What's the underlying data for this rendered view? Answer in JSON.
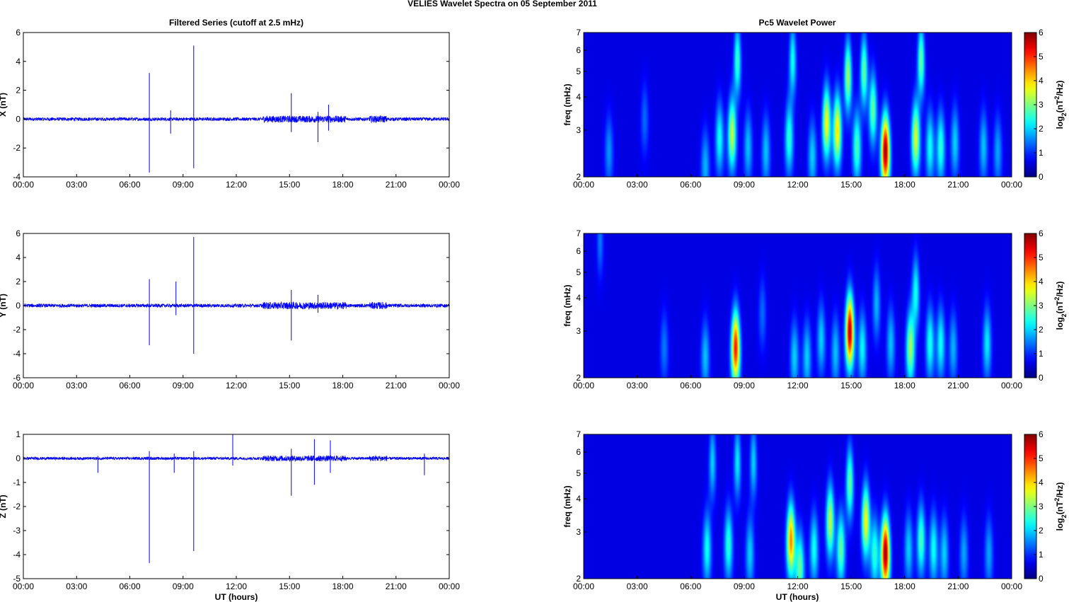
{
  "figure": {
    "suptitle": "VELIES Wavelet Spectra on 05 September 2011",
    "left_title": "Filtered Series (cutoff at 2.5 mHz)",
    "right_title": "Pc5 Wavelet Power",
    "xlabel": "UT (hours)",
    "freq_label": "freq (mHz)",
    "colorbar_label_parts": [
      "log",
      "2",
      "(nT",
      "2",
      "/Hz)"
    ],
    "colors": {
      "trace": "#0000ff",
      "jet_low": "#00008f",
      "jet_high": "#800000"
    }
  },
  "chart_data": [
    {
      "id": "x-series",
      "type": "line",
      "ylabel": "X (nT)",
      "xlim": [
        0,
        24
      ],
      "ylim": [
        -4,
        6
      ],
      "x_ticks": [
        "00:00",
        "03:00",
        "06:00",
        "09:00",
        "12:00",
        "15:00",
        "18:00",
        "21:00",
        "00:00"
      ],
      "y_ticks": [
        -4,
        -2,
        0,
        2,
        4,
        6
      ],
      "noise_amplitude": 0.12,
      "spikes": [
        {
          "x": 7.1,
          "y_max": 3.2,
          "y_min": -3.7
        },
        {
          "x": 8.3,
          "y_max": 0.6,
          "y_min": -1.0
        },
        {
          "x": 9.6,
          "y_max": 5.1,
          "y_min": -3.4
        },
        {
          "x": 15.1,
          "y_max": 1.8,
          "y_min": -0.9
        },
        {
          "x": 16.6,
          "y_max": 0.5,
          "y_min": -1.6
        },
        {
          "x": 17.2,
          "y_max": 1.0,
          "y_min": -0.8
        }
      ]
    },
    {
      "id": "y-series",
      "type": "line",
      "ylabel": "Y (nT)",
      "xlim": [
        0,
        24
      ],
      "ylim": [
        -6,
        6
      ],
      "x_ticks": [
        "00:00",
        "03:00",
        "06:00",
        "09:00",
        "12:00",
        "15:00",
        "18:00",
        "21:00",
        "00:00"
      ],
      "y_ticks": [
        -6,
        -4,
        -2,
        0,
        2,
        4,
        6
      ],
      "noise_amplitude": 0.15,
      "spikes": [
        {
          "x": 7.1,
          "y_max": 2.2,
          "y_min": -3.3
        },
        {
          "x": 8.6,
          "y_max": 2.0,
          "y_min": -0.8
        },
        {
          "x": 9.6,
          "y_max": 5.7,
          "y_min": -4.0
        },
        {
          "x": 15.1,
          "y_max": 1.3,
          "y_min": -2.9
        },
        {
          "x": 16.6,
          "y_max": 0.9,
          "y_min": -0.6
        }
      ]
    },
    {
      "id": "z-series",
      "type": "line",
      "ylabel": "Z (nT)",
      "xlim": [
        0,
        24
      ],
      "ylim": [
        -5,
        1
      ],
      "x_ticks": [
        "00:00",
        "03:00",
        "06:00",
        "09:00",
        "12:00",
        "15:00",
        "18:00",
        "21:00",
        "00:00"
      ],
      "y_ticks": [
        -5,
        -4,
        -3,
        -2,
        -1,
        0,
        1
      ],
      "noise_amplitude": 0.06,
      "spikes": [
        {
          "x": 4.2,
          "y_max": 0.1,
          "y_min": -0.6
        },
        {
          "x": 7.1,
          "y_max": 0.3,
          "y_min": -4.35
        },
        {
          "x": 8.5,
          "y_max": 0.2,
          "y_min": -0.6
        },
        {
          "x": 9.6,
          "y_max": 0.3,
          "y_min": -3.85
        },
        {
          "x": 11.8,
          "y_max": 1.0,
          "y_min": -0.3
        },
        {
          "x": 15.1,
          "y_max": 0.4,
          "y_min": -1.55
        },
        {
          "x": 16.4,
          "y_max": 0.8,
          "y_min": -1.1
        },
        {
          "x": 17.3,
          "y_max": 0.75,
          "y_min": -0.6
        },
        {
          "x": 22.6,
          "y_max": 0.2,
          "y_min": -0.7
        }
      ]
    },
    {
      "id": "x-wavelet",
      "type": "heatmap",
      "ylabel": "freq (mHz)",
      "y_scale": "log",
      "xlim": [
        0,
        24
      ],
      "ylim": [
        2,
        7
      ],
      "x_ticks": [
        "00:00",
        "03:00",
        "06:00",
        "09:00",
        "12:00",
        "15:00",
        "18:00",
        "21:00",
        "00:00"
      ],
      "y_ticks": [
        2,
        3,
        4,
        5,
        6,
        7
      ],
      "colorbar": {
        "range": [
          0,
          6
        ],
        "ticks": [
          0,
          1,
          2,
          3,
          4,
          5,
          6
        ],
        "colormap": "jet"
      },
      "blobs": [
        {
          "t": 1.4,
          "f": 2.5,
          "peak": 1.2
        },
        {
          "t": 3.4,
          "f": 3.3,
          "peak": 0.9
        },
        {
          "t": 6.8,
          "f": 2.2,
          "peak": 1.4
        },
        {
          "t": 7.6,
          "f": 2.8,
          "peak": 2.0
        },
        {
          "t": 8.3,
          "f": 2.9,
          "peak": 3.2
        },
        {
          "t": 8.6,
          "f": 5.5,
          "peak": 2.3
        },
        {
          "t": 9.2,
          "f": 2.6,
          "peak": 1.5
        },
        {
          "t": 10.2,
          "f": 2.5,
          "peak": 1.5
        },
        {
          "t": 11.5,
          "f": 2.8,
          "peak": 2.2
        },
        {
          "t": 11.7,
          "f": 5.5,
          "peak": 2.0
        },
        {
          "t": 12.8,
          "f": 2.4,
          "peak": 1.6
        },
        {
          "t": 13.6,
          "f": 3.2,
          "peak": 3.6
        },
        {
          "t": 14.2,
          "f": 3.0,
          "peak": 3.8
        },
        {
          "t": 14.8,
          "f": 4.8,
          "peak": 3.0
        },
        {
          "t": 15.3,
          "f": 2.6,
          "peak": 2.4
        },
        {
          "t": 15.7,
          "f": 5.0,
          "peak": 2.6
        },
        {
          "t": 16.2,
          "f": 3.6,
          "peak": 2.6
        },
        {
          "t": 16.9,
          "f": 2.5,
          "peak": 6.0
        },
        {
          "t": 18.6,
          "f": 2.8,
          "peak": 3.4
        },
        {
          "t": 18.9,
          "f": 5.5,
          "peak": 2.6
        },
        {
          "t": 19.4,
          "f": 2.6,
          "peak": 2.0
        },
        {
          "t": 20.0,
          "f": 2.6,
          "peak": 2.2
        },
        {
          "t": 20.8,
          "f": 2.7,
          "peak": 1.6
        },
        {
          "t": 22.4,
          "f": 2.6,
          "peak": 1.5
        },
        {
          "t": 23.2,
          "f": 2.5,
          "peak": 1.3
        }
      ]
    },
    {
      "id": "y-wavelet",
      "type": "heatmap",
      "ylabel": "freq (mHz)",
      "y_scale": "log",
      "xlim": [
        0,
        24
      ],
      "ylim": [
        2,
        7
      ],
      "x_ticks": [
        "00:00",
        "03:00",
        "06:00",
        "09:00",
        "12:00",
        "15:00",
        "18:00",
        "21:00",
        "00:00"
      ],
      "y_ticks": [
        2,
        3,
        4,
        5,
        6,
        7
      ],
      "colorbar": {
        "range": [
          0,
          6
        ],
        "ticks": [
          0,
          1,
          2,
          3,
          4,
          5,
          6
        ],
        "colormap": "jet"
      },
      "blobs": [
        {
          "t": 0.9,
          "f": 6.6,
          "peak": 1.0
        },
        {
          "t": 4.5,
          "f": 2.6,
          "peak": 1.0
        },
        {
          "t": 6.8,
          "f": 2.4,
          "peak": 1.5
        },
        {
          "t": 8.5,
          "f": 2.6,
          "peak": 5.2
        },
        {
          "t": 10.0,
          "f": 3.5,
          "peak": 0.9
        },
        {
          "t": 11.8,
          "f": 2.4,
          "peak": 1.6
        },
        {
          "t": 12.5,
          "f": 2.4,
          "peak": 1.6
        },
        {
          "t": 13.3,
          "f": 2.8,
          "peak": 1.6
        },
        {
          "t": 14.1,
          "f": 2.5,
          "peak": 1.5
        },
        {
          "t": 14.9,
          "f": 3.0,
          "peak": 5.8
        },
        {
          "t": 15.6,
          "f": 2.6,
          "peak": 1.9
        },
        {
          "t": 16.4,
          "f": 3.8,
          "peak": 1.4
        },
        {
          "t": 17.2,
          "f": 2.7,
          "peak": 1.5
        },
        {
          "t": 18.3,
          "f": 2.6,
          "peak": 3.0
        },
        {
          "t": 18.6,
          "f": 4.2,
          "peak": 2.0
        },
        {
          "t": 19.4,
          "f": 2.7,
          "peak": 2.1
        },
        {
          "t": 20.0,
          "f": 2.7,
          "peak": 2.0
        },
        {
          "t": 20.7,
          "f": 2.6,
          "peak": 1.4
        },
        {
          "t": 22.6,
          "f": 2.7,
          "peak": 1.8
        }
      ]
    },
    {
      "id": "z-wavelet",
      "type": "heatmap",
      "ylabel": "freq (mHz)",
      "y_scale": "log",
      "xlim": [
        0,
        24
      ],
      "ylim": [
        2,
        7
      ],
      "x_ticks": [
        "00:00",
        "03:00",
        "06:00",
        "09:00",
        "12:00",
        "15:00",
        "18:00",
        "21:00",
        "00:00"
      ],
      "y_ticks": [
        2,
        3,
        4,
        5,
        6,
        7
      ],
      "colorbar": {
        "range": [
          0,
          6
        ],
        "ticks": [
          0,
          1,
          2,
          3,
          4,
          5,
          6
        ],
        "colormap": "jet"
      },
      "blobs": [
        {
          "t": 6.9,
          "f": 2.6,
          "peak": 2.0
        },
        {
          "t": 7.2,
          "f": 5.5,
          "peak": 1.6
        },
        {
          "t": 8.1,
          "f": 2.7,
          "peak": 2.2
        },
        {
          "t": 8.6,
          "f": 5.5,
          "peak": 1.8
        },
        {
          "t": 9.3,
          "f": 2.5,
          "peak": 1.6
        },
        {
          "t": 9.5,
          "f": 5.5,
          "peak": 1.6
        },
        {
          "t": 11.6,
          "f": 2.8,
          "peak": 4.4
        },
        {
          "t": 12.1,
          "f": 2.2,
          "peak": 2.6
        },
        {
          "t": 12.9,
          "f": 2.6,
          "peak": 2.0
        },
        {
          "t": 13.8,
          "f": 3.3,
          "peak": 3.2
        },
        {
          "t": 14.4,
          "f": 2.6,
          "peak": 2.6
        },
        {
          "t": 14.9,
          "f": 4.6,
          "peak": 2.6
        },
        {
          "t": 15.8,
          "f": 3.3,
          "peak": 3.6
        },
        {
          "t": 16.3,
          "f": 2.5,
          "peak": 2.2
        },
        {
          "t": 16.9,
          "f": 2.5,
          "peak": 6.0
        },
        {
          "t": 18.2,
          "f": 2.6,
          "peak": 1.6
        },
        {
          "t": 18.9,
          "f": 2.8,
          "peak": 2.4
        },
        {
          "t": 19.6,
          "f": 2.6,
          "peak": 2.0
        },
        {
          "t": 20.2,
          "f": 2.5,
          "peak": 1.6
        },
        {
          "t": 21.3,
          "f": 2.5,
          "peak": 1.3
        },
        {
          "t": 22.7,
          "f": 2.5,
          "peak": 1.3
        }
      ]
    }
  ]
}
